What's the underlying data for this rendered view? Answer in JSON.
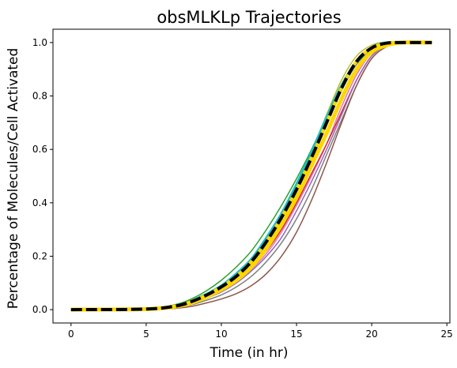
{
  "chart_data": {
    "type": "line",
    "title": "obsMLKLp Trajectories",
    "xlabel": "Time (in hr)",
    "ylabel": "Percentage of Molecules/Cell Activated",
    "xlim": [
      -1.2,
      25.2
    ],
    "ylim": [
      -0.05,
      1.05
    ],
    "xticks": [
      0,
      5,
      10,
      15,
      20,
      25
    ],
    "yticks": [
      0.0,
      0.2,
      0.4,
      0.6,
      0.8,
      1.0
    ],
    "xtick_labels": [
      "0",
      "5",
      "10",
      "15",
      "20",
      "25"
    ],
    "ytick_labels": [
      "0.0",
      "0.2",
      "0.4",
      "0.6",
      "0.8",
      "1.0"
    ],
    "grid": false,
    "legend": "none",
    "series": [
      {
        "color": "#2ca02c",
        "width": 1.5,
        "style": "solid",
        "points": [
          [
            0,
            0
          ],
          [
            5,
            0.003
          ],
          [
            7,
            0.02
          ],
          [
            8,
            0.04
          ],
          [
            9,
            0.07
          ],
          [
            10,
            0.11
          ],
          [
            11,
            0.16
          ],
          [
            12,
            0.22
          ],
          [
            13,
            0.3
          ],
          [
            14,
            0.39
          ],
          [
            15,
            0.49
          ],
          [
            16,
            0.6
          ],
          [
            17,
            0.72
          ],
          [
            18,
            0.83
          ],
          [
            19,
            0.92
          ],
          [
            20,
            0.97
          ],
          [
            21,
            0.995
          ],
          [
            22,
            1
          ],
          [
            24,
            1
          ]
        ]
      },
      {
        "color": "#bcbd22",
        "width": 1.5,
        "style": "solid",
        "points": [
          [
            0,
            0
          ],
          [
            5,
            0.002
          ],
          [
            7,
            0.015
          ],
          [
            8,
            0.03
          ],
          [
            9,
            0.055
          ],
          [
            10,
            0.09
          ],
          [
            11,
            0.13
          ],
          [
            12,
            0.19
          ],
          [
            13,
            0.26
          ],
          [
            14,
            0.35
          ],
          [
            15,
            0.46
          ],
          [
            16,
            0.59
          ],
          [
            17,
            0.73
          ],
          [
            18,
            0.86
          ],
          [
            19,
            0.95
          ],
          [
            20,
            0.99
          ],
          [
            21,
            1
          ],
          [
            24,
            1
          ]
        ]
      },
      {
        "color": "#e377c2",
        "width": 1.5,
        "style": "solid",
        "points": [
          [
            0,
            0
          ],
          [
            5,
            0.002
          ],
          [
            7,
            0.012
          ],
          [
            8,
            0.025
          ],
          [
            9,
            0.045
          ],
          [
            10,
            0.07
          ],
          [
            11,
            0.1
          ],
          [
            12,
            0.15
          ],
          [
            13,
            0.21
          ],
          [
            14,
            0.29
          ],
          [
            15,
            0.39
          ],
          [
            16,
            0.5
          ],
          [
            17,
            0.62
          ],
          [
            18,
            0.76
          ],
          [
            19,
            0.88
          ],
          [
            20,
            0.96
          ],
          [
            21,
            0.99
          ],
          [
            22,
            1
          ],
          [
            24,
            1
          ]
        ]
      },
      {
        "color": "#d62728",
        "width": 1.5,
        "style": "solid",
        "points": [
          [
            0,
            0
          ],
          [
            5,
            0.002
          ],
          [
            7,
            0.012
          ],
          [
            8,
            0.025
          ],
          [
            9,
            0.048
          ],
          [
            10,
            0.075
          ],
          [
            11,
            0.11
          ],
          [
            12,
            0.16
          ],
          [
            13,
            0.22
          ],
          [
            14,
            0.3
          ],
          [
            15,
            0.4
          ],
          [
            16,
            0.51
          ],
          [
            17,
            0.62
          ],
          [
            18,
            0.74
          ],
          [
            19,
            0.86
          ],
          [
            20,
            0.95
          ],
          [
            21,
            0.99
          ],
          [
            22,
            1
          ],
          [
            24,
            1
          ]
        ]
      },
      {
        "color": "#9467bd",
        "width": 1.5,
        "style": "solid",
        "points": [
          [
            0,
            0
          ],
          [
            5,
            0.002
          ],
          [
            7,
            0.01
          ],
          [
            8,
            0.022
          ],
          [
            9,
            0.042
          ],
          [
            10,
            0.066
          ],
          [
            11,
            0.1
          ],
          [
            12,
            0.145
          ],
          [
            13,
            0.2
          ],
          [
            14,
            0.27
          ],
          [
            15,
            0.37
          ],
          [
            16,
            0.48
          ],
          [
            17,
            0.6
          ],
          [
            18,
            0.73
          ],
          [
            19,
            0.86
          ],
          [
            20,
            0.95
          ],
          [
            21,
            0.99
          ],
          [
            22,
            1
          ],
          [
            24,
            1
          ]
        ]
      },
      {
        "color": "#7f7f7f",
        "width": 1.5,
        "style": "solid",
        "points": [
          [
            0,
            0
          ],
          [
            5,
            0.001
          ],
          [
            7,
            0.008
          ],
          [
            8,
            0.018
          ],
          [
            9,
            0.035
          ],
          [
            10,
            0.055
          ],
          [
            11,
            0.085
          ],
          [
            12,
            0.125
          ],
          [
            13,
            0.18
          ],
          [
            14,
            0.25
          ],
          [
            15,
            0.34
          ],
          [
            16,
            0.45
          ],
          [
            17,
            0.58
          ],
          [
            18,
            0.71
          ],
          [
            19,
            0.84
          ],
          [
            20,
            0.94
          ],
          [
            21,
            0.985
          ],
          [
            22,
            1
          ],
          [
            24,
            1
          ]
        ]
      },
      {
        "color": "#8c564b",
        "width": 1.5,
        "style": "solid",
        "points": [
          [
            0,
            0
          ],
          [
            5,
            0.001
          ],
          [
            7,
            0.005
          ],
          [
            8,
            0.012
          ],
          [
            9,
            0.025
          ],
          [
            10,
            0.04
          ],
          [
            11,
            0.06
          ],
          [
            12,
            0.09
          ],
          [
            13,
            0.135
          ],
          [
            14,
            0.2
          ],
          [
            15,
            0.29
          ],
          [
            16,
            0.41
          ],
          [
            17,
            0.55
          ],
          [
            18,
            0.7
          ],
          [
            19,
            0.84
          ],
          [
            20,
            0.94
          ],
          [
            21,
            0.985
          ],
          [
            22,
            1
          ],
          [
            24,
            1
          ]
        ]
      },
      {
        "color": "#ff7f0e",
        "width": 1.5,
        "style": "solid",
        "points": [
          [
            0,
            0
          ],
          [
            5,
            0.002
          ],
          [
            7,
            0.014
          ],
          [
            8,
            0.03
          ],
          [
            9,
            0.055
          ],
          [
            10,
            0.085
          ],
          [
            11,
            0.125
          ],
          [
            12,
            0.18
          ],
          [
            13,
            0.25
          ],
          [
            14,
            0.34
          ],
          [
            15,
            0.45
          ],
          [
            16,
            0.57
          ],
          [
            17,
            0.7
          ],
          [
            18,
            0.83
          ],
          [
            19,
            0.93
          ],
          [
            20,
            0.98
          ],
          [
            21,
            1
          ],
          [
            24,
            1
          ]
        ]
      },
      {
        "color": "#1f77b4",
        "width": 1.5,
        "style": "solid",
        "points": [
          [
            0,
            0
          ],
          [
            5,
            0.002
          ],
          [
            7,
            0.014
          ],
          [
            8,
            0.028
          ],
          [
            9,
            0.05
          ],
          [
            10,
            0.08
          ],
          [
            11,
            0.12
          ],
          [
            12,
            0.17
          ],
          [
            13,
            0.24
          ],
          [
            14,
            0.33
          ],
          [
            15,
            0.44
          ],
          [
            16,
            0.56
          ],
          [
            17,
            0.69
          ],
          [
            18,
            0.82
          ],
          [
            19,
            0.92
          ],
          [
            20,
            0.975
          ],
          [
            21,
            0.995
          ],
          [
            22,
            1
          ],
          [
            24,
            1
          ]
        ]
      },
      {
        "color": "#17becf",
        "width": 3,
        "style": "solid",
        "points": [
          [
            0,
            0
          ],
          [
            5,
            0.002
          ],
          [
            7,
            0.016
          ],
          [
            8,
            0.032
          ],
          [
            9,
            0.058
          ],
          [
            10,
            0.09
          ],
          [
            11,
            0.135
          ],
          [
            12,
            0.19
          ],
          [
            13,
            0.27
          ],
          [
            14,
            0.36
          ],
          [
            15,
            0.47
          ],
          [
            16,
            0.59
          ],
          [
            17,
            0.72
          ],
          [
            18,
            0.84
          ],
          [
            19,
            0.93
          ],
          [
            20,
            0.98
          ],
          [
            21,
            1
          ],
          [
            24,
            1
          ]
        ]
      },
      {
        "color": "#ffd700",
        "width": 5,
        "style": "solid",
        "points": [
          [
            0,
            0
          ],
          [
            5,
            0.002
          ],
          [
            7,
            0.012
          ],
          [
            8,
            0.025
          ],
          [
            9,
            0.047
          ],
          [
            10,
            0.075
          ],
          [
            11,
            0.11
          ],
          [
            12,
            0.16
          ],
          [
            13,
            0.23
          ],
          [
            14,
            0.32
          ],
          [
            15,
            0.42
          ],
          [
            16,
            0.54
          ],
          [
            17,
            0.66
          ],
          [
            18,
            0.79
          ],
          [
            19,
            0.9
          ],
          [
            20,
            0.965
          ],
          [
            21,
            0.99
          ],
          [
            22,
            1
          ],
          [
            24,
            1
          ]
        ]
      },
      {
        "color": "#000000",
        "width": 4,
        "style": "dashed",
        "dash_fill": "#ffd700",
        "points": [
          [
            0,
            0
          ],
          [
            5,
            0.002
          ],
          [
            7,
            0.014
          ],
          [
            8,
            0.03
          ],
          [
            9,
            0.054
          ],
          [
            10,
            0.085
          ],
          [
            11,
            0.125
          ],
          [
            12,
            0.18
          ],
          [
            13,
            0.255
          ],
          [
            14,
            0.345
          ],
          [
            15,
            0.45
          ],
          [
            16,
            0.57
          ],
          [
            17,
            0.7
          ],
          [
            18,
            0.83
          ],
          [
            19,
            0.93
          ],
          [
            20,
            0.98
          ],
          [
            21,
            0.998
          ],
          [
            22,
            1
          ],
          [
            24,
            1
          ]
        ]
      }
    ]
  }
}
